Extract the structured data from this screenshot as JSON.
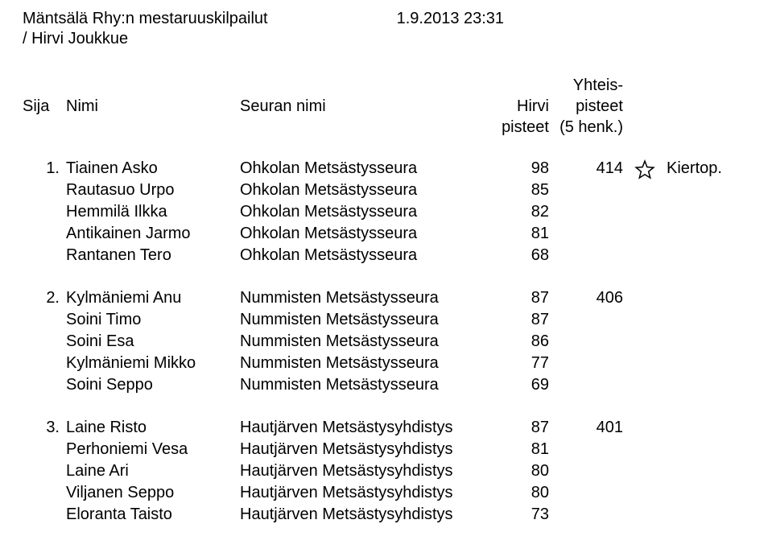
{
  "header": {
    "title_line1": "Mäntsälä Rhy:n mestaruuskilpailut",
    "title_line2": "/ Hirvi Joukkue",
    "datetime": "1.9.2013 23:31"
  },
  "columns": {
    "sija": "Sija",
    "nimi": "Nimi",
    "seura": "Seuran nimi",
    "hirvi": "Hirvi",
    "pisteet1": "pisteet",
    "yhteis": "Yhteis-",
    "pisteet2": "pisteet",
    "henk": "(5 henk.)"
  },
  "style": {
    "font_size_pt": 15,
    "text_color": "#000000",
    "background_color": "#ffffff",
    "star_stroke_color": "#000000",
    "star_fill_color": "none",
    "star_stroke_width": 1.4
  },
  "groups": [
    {
      "rank": "1.",
      "team_score": "414",
      "note": "Kiertop.",
      "has_star": true,
      "rows": [
        {
          "name": "Tiainen Asko",
          "club": "Ohkolan Metsästysseura",
          "score": "98"
        },
        {
          "name": "Rautasuo Urpo",
          "club": "Ohkolan Metsästysseura",
          "score": "85"
        },
        {
          "name": "Hemmilä Ilkka",
          "club": "Ohkolan Metsästysseura",
          "score": "82"
        },
        {
          "name": "Antikainen Jarmo",
          "club": "Ohkolan Metsästysseura",
          "score": "81"
        },
        {
          "name": "Rantanen Tero",
          "club": "Ohkolan Metsästysseura",
          "score": "68"
        }
      ]
    },
    {
      "rank": "2.",
      "team_score": "406",
      "note": "",
      "has_star": false,
      "rows": [
        {
          "name": "Kylmäniemi Anu",
          "club": "Nummisten Metsästysseura",
          "score": "87"
        },
        {
          "name": "Soini Timo",
          "club": "Nummisten Metsästysseura",
          "score": "87"
        },
        {
          "name": "Soini Esa",
          "club": "Nummisten Metsästysseura",
          "score": "86"
        },
        {
          "name": "Kylmäniemi Mikko",
          "club": "Nummisten Metsästysseura",
          "score": "77"
        },
        {
          "name": "Soini Seppo",
          "club": "Nummisten Metsästysseura",
          "score": "69"
        }
      ]
    },
    {
      "rank": "3.",
      "team_score": "401",
      "note": "",
      "has_star": false,
      "rows": [
        {
          "name": "Laine Risto",
          "club": "Hautjärven Metsästysyhdistys",
          "score": "87"
        },
        {
          "name": "Perhoniemi Vesa",
          "club": "Hautjärven Metsästysyhdistys",
          "score": "81"
        },
        {
          "name": "Laine Ari",
          "club": "Hautjärven Metsästysyhdistys",
          "score": "80"
        },
        {
          "name": "Viljanen Seppo",
          "club": "Hautjärven Metsästysyhdistys",
          "score": "80"
        },
        {
          "name": "Eloranta Taisto",
          "club": "Hautjärven Metsästysyhdistys",
          "score": "73"
        }
      ]
    }
  ]
}
